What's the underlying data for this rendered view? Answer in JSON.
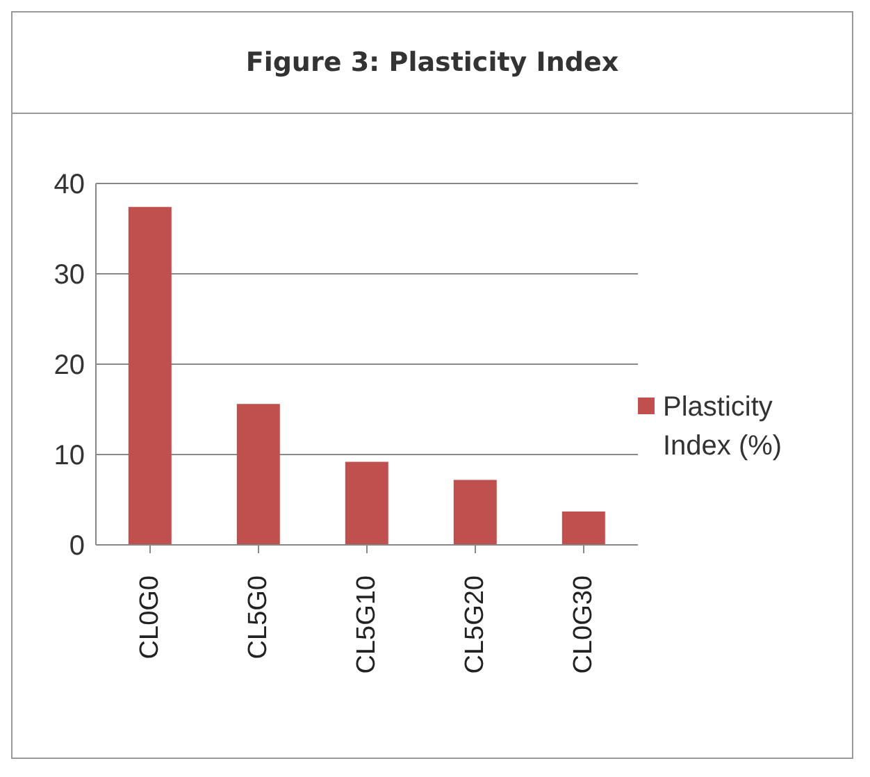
{
  "chart_data": {
    "type": "bar",
    "title": "Figure 3: Plasticity Index",
    "categories": [
      "CL0G0",
      "CL5G0",
      "CL5G10",
      "CL5G20",
      "CL0G30"
    ],
    "series": [
      {
        "name": "Plasticity Index (%)",
        "color": "#c0504d",
        "values": [
          37.4,
          15.6,
          9.2,
          7.2,
          3.7
        ]
      }
    ],
    "ylim": [
      0,
      40
    ],
    "yticks": [
      0,
      10,
      20,
      30,
      40
    ],
    "grid": "y",
    "legend": "right"
  }
}
